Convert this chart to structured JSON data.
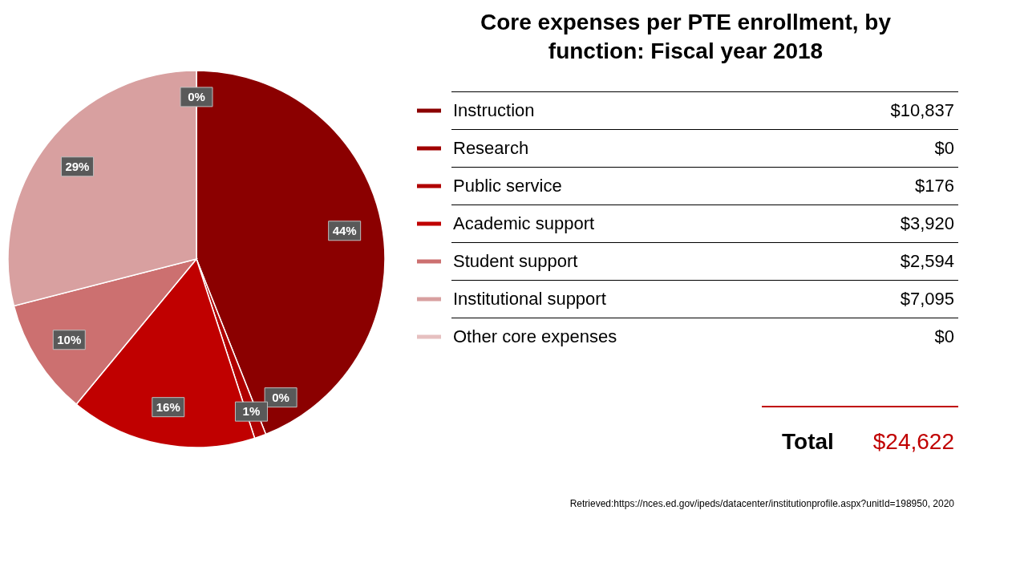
{
  "chart_data": {
    "type": "pie",
    "title": "Core expenses per PTE enrollment, by function: Fiscal year 2018",
    "categories": [
      "Instruction",
      "Research",
      "Public service",
      "Academic support",
      "Student support",
      "Institutional support",
      "Other core expenses"
    ],
    "values": [
      44,
      0,
      1,
      16,
      10,
      29,
      0
    ],
    "colors": [
      "#8b0000",
      "#a00000",
      "#b00000",
      "#c00000",
      "#cc7070",
      "#d8a0a0",
      "#e6c0c0"
    ],
    "value_labels": [
      "44%",
      "0%",
      "1%",
      "16%",
      "10%",
      "29%",
      "0%"
    ],
    "legend": "right",
    "annotations": [
      "$10,837",
      "$0",
      "$176",
      "$3,920",
      "$2,594",
      "$7,095",
      "$0",
      "Total",
      "$24,622",
      "Retrieved:https://nces.ed.gov/ipeds/datacenter/institutionprofile.aspx?unitId=198950, 2020"
    ]
  }
}
